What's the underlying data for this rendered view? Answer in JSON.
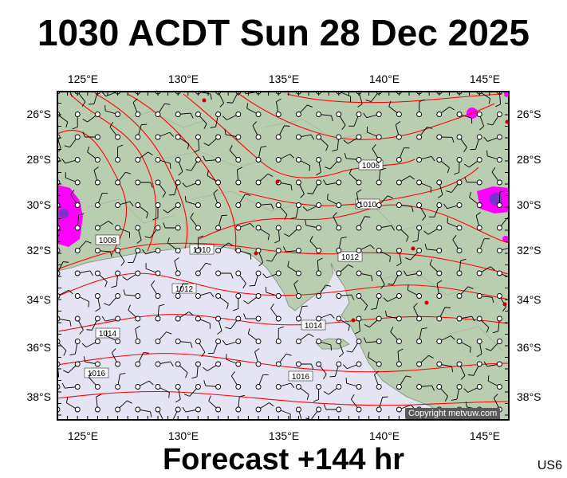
{
  "title": "1030 ACDT Sun 28 Dec 2025",
  "footer": "Forecast +144 hr",
  "code": "US6",
  "copyright": "Copyright metvuw.com",
  "map": {
    "lon_ticks": [
      "125°E",
      "130°E",
      "135°E",
      "140°E",
      "145°E"
    ],
    "lat_ticks": [
      "26°S",
      "28°S",
      "30°S",
      "32°S",
      "34°S",
      "36°S",
      "38°S"
    ],
    "isobars": [
      "1008",
      "1010",
      "1010",
      "1012",
      "1012",
      "1014",
      "1014",
      "1016",
      "1016",
      "1006"
    ],
    "colors": {
      "land": "#b9cdb1",
      "sea": "#e4e4f4",
      "isobar": "#ff0000",
      "precip": "#ff00ff"
    }
  }
}
